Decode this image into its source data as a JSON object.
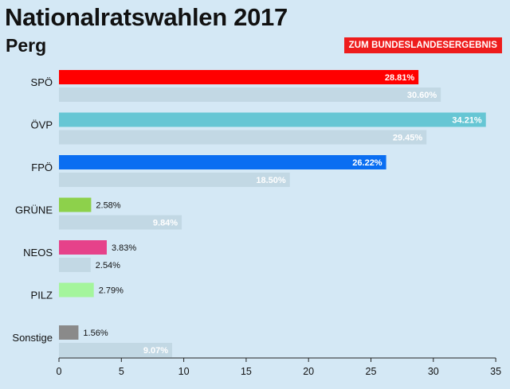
{
  "header": {
    "title": "Nationalratswahlen 2017",
    "subtitle": "Perg",
    "state_result_button": "ZUM BUNDESLANDESERGEBNIS"
  },
  "chart_data": {
    "type": "bar",
    "orientation": "horizontal",
    "title": "Nationalratswahlen 2017",
    "subtitle": "Perg",
    "categories": [
      "SPÖ",
      "ÖVP",
      "FPÖ",
      "GRÜNE",
      "NEOS",
      "PILZ",
      "Sonstige"
    ],
    "series": [
      {
        "values": [
          28.81,
          34.21,
          26.22,
          2.58,
          3.83,
          2.79,
          1.56
        ],
        "labels": [
          "28.81%",
          "34.21%",
          "26.22%",
          "2.58%",
          "3.83%",
          "2.79%",
          "1.56%"
        ],
        "colors": [
          "#ff0000",
          "#66c6d4",
          "#0a6ef2",
          "#8dd14b",
          "#e6428a",
          "#a4f59c",
          "#8a8a8a"
        ]
      },
      {
        "values": [
          30.6,
          29.45,
          18.5,
          9.84,
          2.54,
          null,
          9.07
        ],
        "labels": [
          "30.60%",
          "29.45%",
          "18.50%",
          "9.84%",
          "2.54%",
          "",
          "9.07%"
        ],
        "color": "#c2d8e4"
      }
    ],
    "xlim": [
      0,
      35
    ],
    "xticks": [
      "0",
      "5",
      "10",
      "15",
      "20",
      "25",
      "30",
      "35"
    ],
    "grid": false,
    "legend": "none"
  }
}
